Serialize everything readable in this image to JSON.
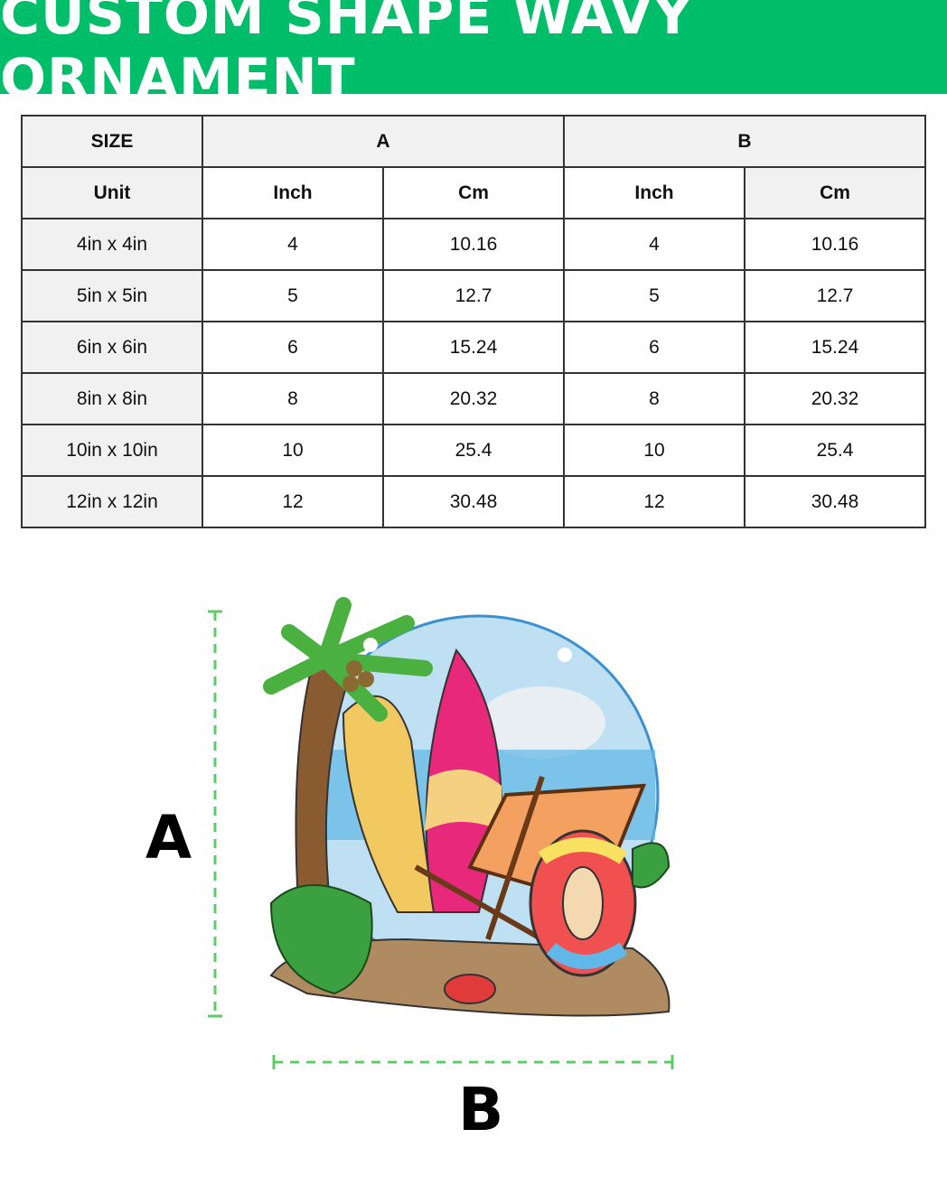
{
  "title": "CUSTOM SHAPE WAVY ORNAMENT",
  "table": {
    "header": {
      "size": "SIZE",
      "a": "A",
      "b": "B"
    },
    "units": {
      "label": "Unit",
      "a_inch": "Inch",
      "a_cm": "Cm",
      "b_inch": "Inch",
      "b_cm": "Cm"
    },
    "rows": [
      {
        "size": "4in x 4in",
        "a_inch": "4",
        "a_cm": "10.16",
        "b_inch": "4",
        "b_cm": "10.16"
      },
      {
        "size": "5in x 5in",
        "a_inch": "5",
        "a_cm": "12.7",
        "b_inch": "5",
        "b_cm": "12.7"
      },
      {
        "size": "6in x 6in",
        "a_inch": "6",
        "a_cm": "15.24",
        "b_inch": "6",
        "b_cm": "15.24"
      },
      {
        "size": "8in x 8in",
        "a_inch": "8",
        "a_cm": "20.32",
        "b_inch": "8",
        "b_cm": "20.32"
      },
      {
        "size": "10in x 10in",
        "a_inch": "10",
        "a_cm": "25.4",
        "b_inch": "10",
        "b_cm": "25.4"
      },
      {
        "size": "12in x 12in",
        "a_inch": "12",
        "a_cm": "30.48",
        "b_inch": "12",
        "b_cm": "30.48"
      }
    ]
  },
  "dimensions": {
    "height_label": "A",
    "width_label": "B"
  },
  "colors": {
    "brand": "#00bd6a",
    "dimension_line": "#5ccc6a"
  }
}
